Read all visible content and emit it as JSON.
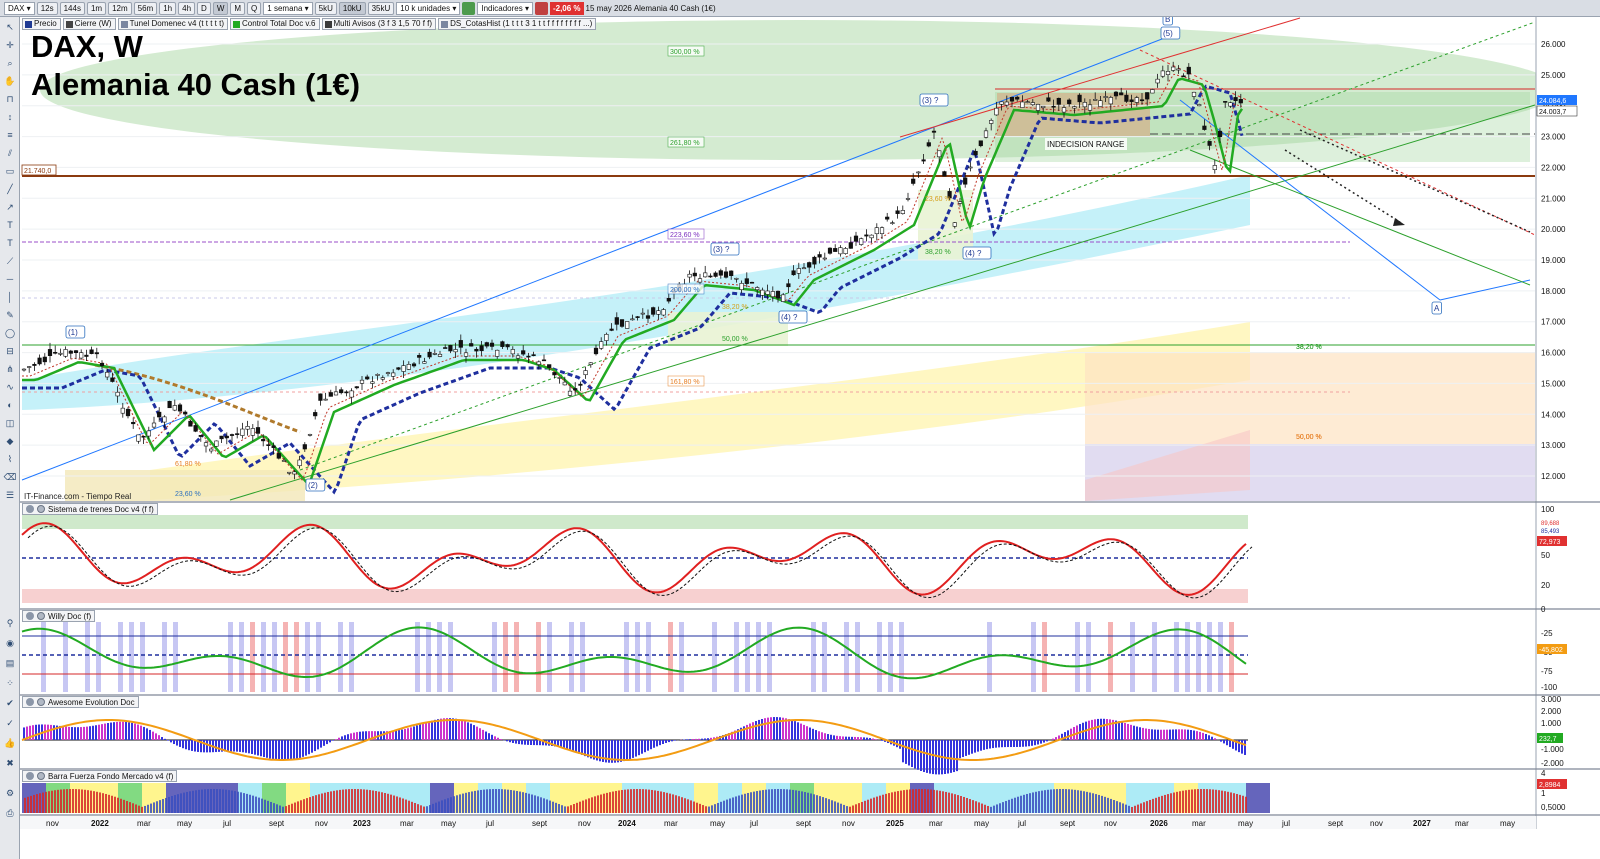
{
  "toolbar": {
    "symbol": "DAX",
    "timeframes": [
      "12s",
      "144s",
      "1m",
      "12m",
      "56m",
      "1h",
      "4h",
      "D",
      "W",
      "M",
      "Q"
    ],
    "active_timeframe": "W",
    "period": "1 semana",
    "unit_buttons": [
      "5kU",
      "10kU",
      "35kU"
    ],
    "active_unit": "10kU",
    "units": "10 k unidades",
    "indicators_label": "Indicadores",
    "change": "-2,06 %",
    "date": "15 may 2026",
    "instrument": "Alemania 40 Cash (1€)"
  },
  "legend": [
    {
      "label": "Precio",
      "color": "#1f3a93"
    },
    {
      "label": "Cierre (W)",
      "color": "#444444"
    },
    {
      "label": "Tunel Domenec v4 (t t t t t)",
      "color": "#7a86a0"
    },
    {
      "label": "Control Total Doc v.6",
      "color": "#22aa22"
    },
    {
      "label": "Multi Avisos (3 f 3 1,5 70 f f)",
      "color": "#3a3a3a"
    },
    {
      "label": "DS_CotasHist (1 t t t 3 1 t t f f f f f f f f ...)",
      "color": "#7a86a0"
    }
  ],
  "title": {
    "main": "DAX, W",
    "sub": "Alemania 40 Cash (1€)"
  },
  "source": "IT-Finance.com - Tiempo Real",
  "colors": {
    "bull": "#2ca02c",
    "bear": "#d62728",
    "candle": "#111111",
    "support": "#8b3a0f",
    "channel": "#1f77ff",
    "fib_zone": "#9fd39a",
    "cyan_zone": "#9fe7f5",
    "yellow_zone": "#fff3a8",
    "pink_zone": "#f7c6c6"
  },
  "price_axis": {
    "labels": [
      "26.000",
      "25.000",
      "24.000",
      "23.000",
      "22.000",
      "21.000",
      "20.000",
      "19.000",
      "18.000",
      "17.000",
      "16.000",
      "15.000",
      "14.000",
      "13.000",
      "12.000"
    ],
    "current_labels": [
      "24.084,6",
      "24.003,7"
    ]
  },
  "support_label": "21.740,0",
  "annotations": {
    "fib_levels": [
      "300,00 %",
      "261,80 %",
      "223,60 %",
      "200,00 %",
      "161,80 %",
      "38,20 %",
      "50,00 %",
      "61,80 %",
      "23,60 %",
      "38,20 %",
      "50,00 %",
      "23,60 %",
      "38,20 %",
      "38,20 %",
      "50,00 %"
    ],
    "waves": [
      "(1)",
      "(2)",
      "(3) ?",
      "(4) ?",
      "(3) ?",
      "(4) ?",
      "(5)",
      "A",
      "B"
    ],
    "range_label": "INDECISION RANGE"
  },
  "time_axis": [
    "nov",
    "2022",
    "mar",
    "may",
    "jul",
    "sept",
    "nov",
    "2023",
    "mar",
    "may",
    "jul",
    "sept",
    "nov",
    "2024",
    "mar",
    "may",
    "jul",
    "sept",
    "nov",
    "2025",
    "mar",
    "may",
    "jul",
    "sept",
    "nov",
    "2026",
    "mar",
    "may",
    "jul",
    "sept",
    "nov",
    "2027",
    "mar",
    "may"
  ],
  "panes": [
    {
      "title": "Sistema de trenes Doc v4 (f f)",
      "axis": [
        "100",
        "50",
        "20"
      ],
      "value": "72,973",
      "extra": [
        "89,688",
        "85,493"
      ]
    },
    {
      "title": "Willy Doc (f)",
      "axis": [
        "0",
        "-25",
        "-50",
        "-75",
        "-100"
      ],
      "value": "-45,802"
    },
    {
      "title": "Awesome Evolution Doc",
      "axis": [
        "3.000",
        "2.000",
        "1.000",
        "0",
        "-1.000",
        "-2.000"
      ],
      "value": "232,7"
    },
    {
      "title": "Barra Fuerza Fondo Mercado v4 (f)",
      "axis": [
        "4",
        "2",
        "1",
        "0,5000"
      ],
      "value": "2,8984"
    }
  ]
}
